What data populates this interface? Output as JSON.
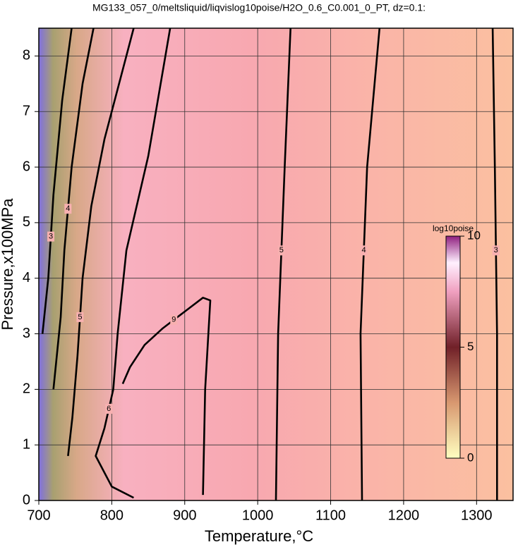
{
  "chart_data": {
    "type": "contour",
    "title": "MG133_057_0/meltsliquid/liqvislog10poise/H2O_0.6_C0.001_0_PT, dz=0.1:",
    "x_label": "Temperature,°C",
    "y_label": "Pressure,x100MPa",
    "xlim": [
      700,
      1350
    ],
    "ylim": [
      0,
      8.5
    ],
    "xticks": [
      700,
      800,
      900,
      1000,
      1100,
      1200,
      1300
    ],
    "yticks": [
      0,
      1,
      2,
      3,
      4,
      5,
      6,
      7,
      8
    ],
    "grid": true,
    "colorbar": {
      "label": "log10poise",
      "lim": [
        0,
        10
      ],
      "ticks": [
        0,
        5,
        10
      ]
    },
    "contours": [
      {
        "level": 3,
        "x": [
          1328,
          1328,
          1325,
          1322
        ],
        "y": [
          0,
          3,
          6,
          8.5
        ]
      },
      {
        "level": 4,
        "x": [
          1143,
          1141,
          1150,
          1167
        ],
        "y": [
          0,
          3,
          6,
          8.5
        ]
      },
      {
        "level": 5,
        "x": [
          1025,
          1028,
          1037,
          1045
        ],
        "y": [
          0,
          3,
          6,
          8.5
        ]
      },
      {
        "level": 9,
        "x": [
          925,
          928,
          935,
          925,
          900,
          870,
          845,
          825,
          815
        ],
        "y": [
          0.1,
          2,
          3.6,
          3.65,
          3.4,
          3.1,
          2.8,
          2.4,
          2.1
        ]
      },
      {
        "level": 6,
        "x": [
          880,
          850,
          820,
          808,
          802,
          790,
          778,
          800,
          830
        ],
        "y": [
          8.5,
          6.2,
          4.5,
          3,
          2,
          1.3,
          0.8,
          0.25,
          0.05
        ]
      },
      {
        "level": 5,
        "x": [
          830,
          790,
          772,
          760,
          753,
          746,
          740
        ],
        "y": [
          8.5,
          6.5,
          5.3,
          4,
          2.6,
          1.5,
          0.8
        ]
      },
      {
        "level": 4,
        "x": [
          775,
          760,
          745,
          735,
          730,
          720
        ],
        "y": [
          8.5,
          7.5,
          6,
          4.5,
          3.3,
          2
        ]
      },
      {
        "level": 3,
        "x": [
          745,
          732,
          720,
          713,
          705
        ],
        "y": [
          8.5,
          7.2,
          5.5,
          4,
          3
        ]
      }
    ]
  }
}
